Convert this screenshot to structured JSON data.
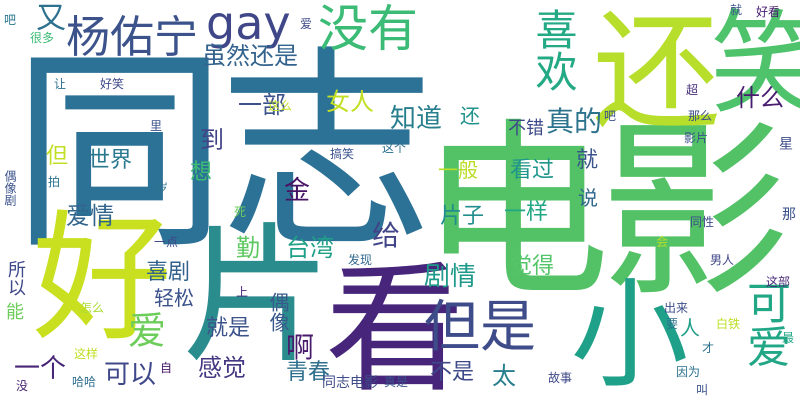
{
  "words": [
    {
      "text": "同志",
      "color": "#2c7296"
    },
    {
      "text": "电影",
      "color": "#53c266"
    },
    {
      "text": "好",
      "color": "#c8e020"
    },
    {
      "text": "片",
      "color": "#2b8c8e"
    },
    {
      "text": "看",
      "color": "#46257a"
    },
    {
      "text": "还",
      "color": "#b6de2b"
    },
    {
      "text": "笑",
      "color": "#4ec36b"
    },
    {
      "text": "小",
      "color": "#1fa088"
    },
    {
      "text": "喜欢",
      "color": "#23a984"
    },
    {
      "text": "但是",
      "color": "#3e4c8a"
    },
    {
      "text": "可爱",
      "color": "#21a785"
    },
    {
      "text": "杨佑宁",
      "color": "#3b528b"
    },
    {
      "text": "gay",
      "color": "#3f4788"
    },
    {
      "text": "没有",
      "color": "#3bbb75"
    },
    {
      "text": "又",
      "color": "#2d718e"
    },
    {
      "text": "虽然还是",
      "color": "#33638d"
    },
    {
      "text": "一部",
      "color": "#3b528b"
    },
    {
      "text": "女人",
      "color": "#c2df23"
    },
    {
      "text": "什么",
      "color": "#481c6e"
    },
    {
      "text": "知道",
      "color": "#277f8e"
    },
    {
      "text": "真的",
      "color": "#2c738e"
    },
    {
      "text": "还",
      "color": "#20928c"
    },
    {
      "text": "不错",
      "color": "#3e4989"
    },
    {
      "text": "到",
      "color": "#414487"
    },
    {
      "text": "世界",
      "color": "#2a788e"
    },
    {
      "text": "但",
      "color": "#c0df25"
    },
    {
      "text": "想",
      "color": "#3dbc74"
    },
    {
      "text": "一般",
      "color": "#bade28"
    },
    {
      "text": "看过",
      "color": "#1f968b"
    },
    {
      "text": "就",
      "color": "#3a538b"
    },
    {
      "text": "金",
      "color": "#471365"
    },
    {
      "text": "爱情",
      "color": "#32658e"
    },
    {
      "text": "片子",
      "color": "#228d8d"
    },
    {
      "text": "一样",
      "color": "#22a785"
    },
    {
      "text": "说",
      "color": "#31688e"
    },
    {
      "text": "给",
      "color": "#414487"
    },
    {
      "text": "勤",
      "color": "#5ec962"
    },
    {
      "text": "台湾",
      "color": "#1fa187"
    },
    {
      "text": "喜剧",
      "color": "#33638d"
    },
    {
      "text": "剧情",
      "color": "#1f9a8a"
    },
    {
      "text": "觉得",
      "color": "#54c568"
    },
    {
      "text": "爱",
      "color": "#6ccd5a"
    },
    {
      "text": "轻松",
      "color": "#3b528b"
    },
    {
      "text": "偶像",
      "color": "#38598c"
    },
    {
      "text": "就是",
      "color": "#3b528b"
    },
    {
      "text": "啊",
      "color": "#481a6c"
    },
    {
      "text": "感觉",
      "color": "#453781"
    },
    {
      "text": "青春",
      "color": "#2e6f8e"
    },
    {
      "text": "可以",
      "color": "#3f4889"
    },
    {
      "text": "一个",
      "color": "#482576"
    },
    {
      "text": "不是",
      "color": "#3e4989"
    },
    {
      "text": "太",
      "color": "#277f8e"
    },
    {
      "text": "同志电影",
      "color": "#3e4c8a"
    },
    {
      "text": "人",
      "color": "#1f9f88"
    },
    {
      "text": "因为",
      "color": "#2d718e"
    },
    {
      "text": "同性",
      "color": "#3d4d8a"
    },
    {
      "text": "所以",
      "color": "#3e4989"
    },
    {
      "text": "能",
      "color": "#6ccd5a"
    },
    {
      "text": "好笑",
      "color": "#3e4989"
    },
    {
      "text": "很多",
      "color": "#3bbb75"
    },
    {
      "text": "让",
      "color": "#2d718e"
    },
    {
      "text": "吧",
      "color": "#2a768e"
    },
    {
      "text": "好看",
      "color": "#481f70"
    },
    {
      "text": "超",
      "color": "#472d7b"
    },
    {
      "text": "那么",
      "color": "#3d4d8a"
    },
    {
      "text": "影片",
      "color": "#3b528b"
    },
    {
      "text": "星",
      "color": "#3d4d8a"
    },
    {
      "text": "那",
      "color": "#3b528b"
    },
    {
      "text": "这部",
      "color": "#482878"
    },
    {
      "text": "男人",
      "color": "#404588"
    },
    {
      "text": "最",
      "color": "#21a685"
    },
    {
      "text": "才",
      "color": "#2c728e"
    },
    {
      "text": "白铁",
      "color": "#bddf26"
    },
    {
      "text": "故事",
      "color": "#3e4989"
    },
    {
      "text": "真是",
      "color": "#3b528b"
    },
    {
      "text": "出来",
      "color": "#3d4d8a"
    },
    {
      "text": "发现",
      "color": "#31688e"
    },
    {
      "text": "死",
      "color": "#6ccd5a"
    },
    {
      "text": "上",
      "color": "#482475"
    },
    {
      "text": "一点",
      "color": "#3e4989"
    },
    {
      "text": "岁",
      "color": "#2d718e"
    },
    {
      "text": "拍",
      "color": "#2c728e"
    },
    {
      "text": "搞笑",
      "color": "#3b528b"
    },
    {
      "text": "这个",
      "color": "#2d708e"
    },
    {
      "text": "里",
      "color": "#3b528b"
    },
    {
      "text": "这么",
      "color": "#c2df23"
    },
    {
      "text": "哈哈",
      "color": "#2e6e8e"
    },
    {
      "text": "没",
      "color": "#482576"
    },
    {
      "text": "偶像剧",
      "color": "#3b528b"
    },
    {
      "text": "怎么",
      "color": "#aadc32"
    },
    {
      "text": "这样",
      "color": "#c2df23"
    },
    {
      "text": "爱",
      "color": "#3e4a89"
    },
    {
      "text": "会",
      "color": "#b5de2b"
    },
    {
      "text": "要",
      "color": "#2c718e"
    },
    {
      "text": "叫",
      "color": "#3b528b"
    },
    {
      "text": "自",
      "color": "#481769"
    },
    {
      "text": "吧",
      "color": "#3b528b"
    },
    {
      "text": "就",
      "color": "#3b528b"
    }
  ]
}
